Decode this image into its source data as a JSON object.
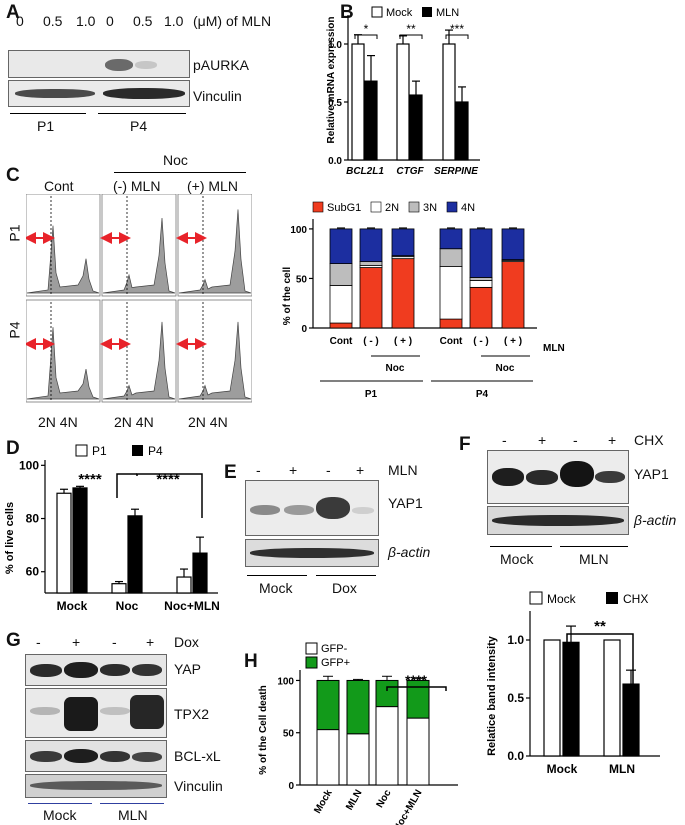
{
  "panels": {
    "A": {
      "label": "A",
      "conc": [
        "0",
        "0.5",
        "1.0",
        "0",
        "0.5",
        "1.0"
      ],
      "unit": "(μM) of MLN",
      "rows": [
        "pAURKA",
        "Vinculin"
      ],
      "groups": [
        "P1",
        "P4"
      ]
    },
    "B": {
      "label": "B",
      "legend": [
        "Mock",
        "MLN"
      ],
      "ylabel": "Relative mRNA expression",
      "genes": [
        "BCL2L1",
        "CTGF",
        "SERPINE"
      ],
      "sig": [
        "*",
        "**",
        "***"
      ],
      "ticks": [
        "0.0",
        "0.5",
        "1.0"
      ]
    },
    "C": {
      "label": "C",
      "noc": "Noc",
      "cols": [
        "Cont",
        "(-) MLN",
        "(+) MLN"
      ],
      "rows": [
        "P1",
        "P4"
      ],
      "xlab": [
        "2N 4N",
        "2N 4N",
        "2N 4N"
      ],
      "legend": [
        "SubG1",
        "2N",
        "3N",
        "4N"
      ],
      "ylabel": "% of the cell",
      "ticks": [
        "0",
        "50",
        "100"
      ],
      "xcats": [
        "Cont",
        "( - )",
        "( + )",
        "Cont",
        "( - )",
        "( + )"
      ],
      "mln": "MLN",
      "noc_groups": [
        "Noc",
        "Noc"
      ],
      "groups": [
        "P1",
        "P4"
      ]
    },
    "D": {
      "label": "D",
      "legend": [
        "P1",
        "P4"
      ],
      "ylabel": "% of live cells",
      "ticks": [
        "60",
        "80",
        "100"
      ],
      "cats": [
        "Mock",
        "Noc",
        "Noc+MLN"
      ],
      "sig": [
        "****",
        "****"
      ]
    },
    "E": {
      "label": "E",
      "signs": [
        "-",
        "+",
        "-",
        "+"
      ],
      "treat": "MLN",
      "rows": [
        "YAP1",
        "β-actin"
      ],
      "groups": [
        "Mock",
        "Dox"
      ]
    },
    "F": {
      "label": "F",
      "signs": [
        "-",
        "+",
        "-",
        "+"
      ],
      "treat": "CHX",
      "rows": [
        "YAP1",
        "β-actin"
      ],
      "groups": [
        "Mock",
        "MLN"
      ],
      "legend": [
        "Mock",
        "CHX"
      ],
      "ylabel": "Relatice band intensity",
      "ticks": [
        "0.0",
        "0.5",
        "1.0"
      ],
      "cats": [
        "Mock",
        "MLN"
      ],
      "sig": "**"
    },
    "G": {
      "label": "G",
      "signs": [
        "-",
        "+",
        "-",
        "+"
      ],
      "treat": "Dox",
      "rows": [
        "YAP",
        "TPX2",
        "BCL-xL",
        "Vinculin"
      ],
      "groups": [
        "Mock",
        "MLN"
      ]
    },
    "H": {
      "label": "H",
      "legend": [
        "GFP-",
        "GFP+"
      ],
      "ylabel": "% of the Cell death",
      "ticks": [
        "0",
        "50",
        "100"
      ],
      "cats": [
        "Mock",
        "MLN",
        "Noc",
        "Noc+MLN"
      ],
      "sig": "****"
    }
  },
  "chart_data": [
    {
      "id": "B",
      "type": "bar",
      "categories": [
        "BCL2L1",
        "CTGF",
        "SERPINE"
      ],
      "series": [
        {
          "name": "Mock",
          "values": [
            1.0,
            1.0,
            1.0
          ],
          "err": [
            0.08,
            0.07,
            0.12
          ]
        },
        {
          "name": "MLN",
          "values": [
            0.68,
            0.56,
            0.5
          ],
          "err": [
            0.22,
            0.12,
            0.13
          ]
        }
      ],
      "ylabel": "Relative mRNA expression",
      "ylim": [
        0,
        1.25
      ]
    },
    {
      "id": "C",
      "type": "bar",
      "stacked": true,
      "categories": [
        "Cont",
        "( - )",
        "( + )",
        "Cont",
        "( - )",
        "( + )"
      ],
      "series": [
        {
          "name": "SubG1",
          "values": [
            5,
            61,
            70,
            9,
            41,
            67
          ]
        },
        {
          "name": "2N",
          "values": [
            38,
            2,
            2,
            53,
            7,
            1
          ]
        },
        {
          "name": "3N",
          "values": [
            22,
            4,
            1,
            18,
            3,
            1
          ]
        },
        {
          "name": "4N",
          "values": [
            35,
            33,
            27,
            20,
            49,
            31
          ]
        }
      ],
      "ylabel": "% of the cell",
      "ylim": [
        0,
        110
      ]
    },
    {
      "id": "D",
      "type": "bar",
      "categories": [
        "Mock",
        "Noc",
        "Noc+MLN"
      ],
      "series": [
        {
          "name": "P1",
          "values": [
            89.5,
            55.5,
            58
          ],
          "err": [
            1.5,
            0.8,
            3
          ]
        },
        {
          "name": "P4",
          "values": [
            91.5,
            81,
            67
          ],
          "err": [
            0.6,
            2.5,
            6
          ]
        }
      ],
      "ylabel": "% of live cells",
      "ylim": [
        50,
        100
      ]
    },
    {
      "id": "F",
      "type": "bar",
      "categories": [
        "Mock",
        "MLN"
      ],
      "series": [
        {
          "name": "Mock",
          "values": [
            1.0,
            1.0
          ],
          "err": [
            0,
            0
          ]
        },
        {
          "name": "CHX",
          "values": [
            0.98,
            0.62
          ],
          "err": [
            0.14,
            0.12
          ]
        }
      ],
      "ylabel": "Relatice band intensity",
      "ylim": [
        0,
        1.25
      ]
    },
    {
      "id": "H",
      "type": "bar",
      "stacked": true,
      "categories": [
        "Mock",
        "MLN",
        "Noc",
        "Noc+MLN"
      ],
      "series": [
        {
          "name": "GFP-",
          "values": [
            53,
            49,
            75,
            64
          ],
          "err": [
            5,
            0,
            5,
            2
          ]
        },
        {
          "name": "GFP+",
          "values": [
            47,
            51,
            25,
            36
          ],
          "err": [
            4,
            1,
            4,
            2
          ]
        }
      ],
      "ylabel": "% of the Cell death",
      "ylim": [
        0,
        110
      ]
    }
  ]
}
